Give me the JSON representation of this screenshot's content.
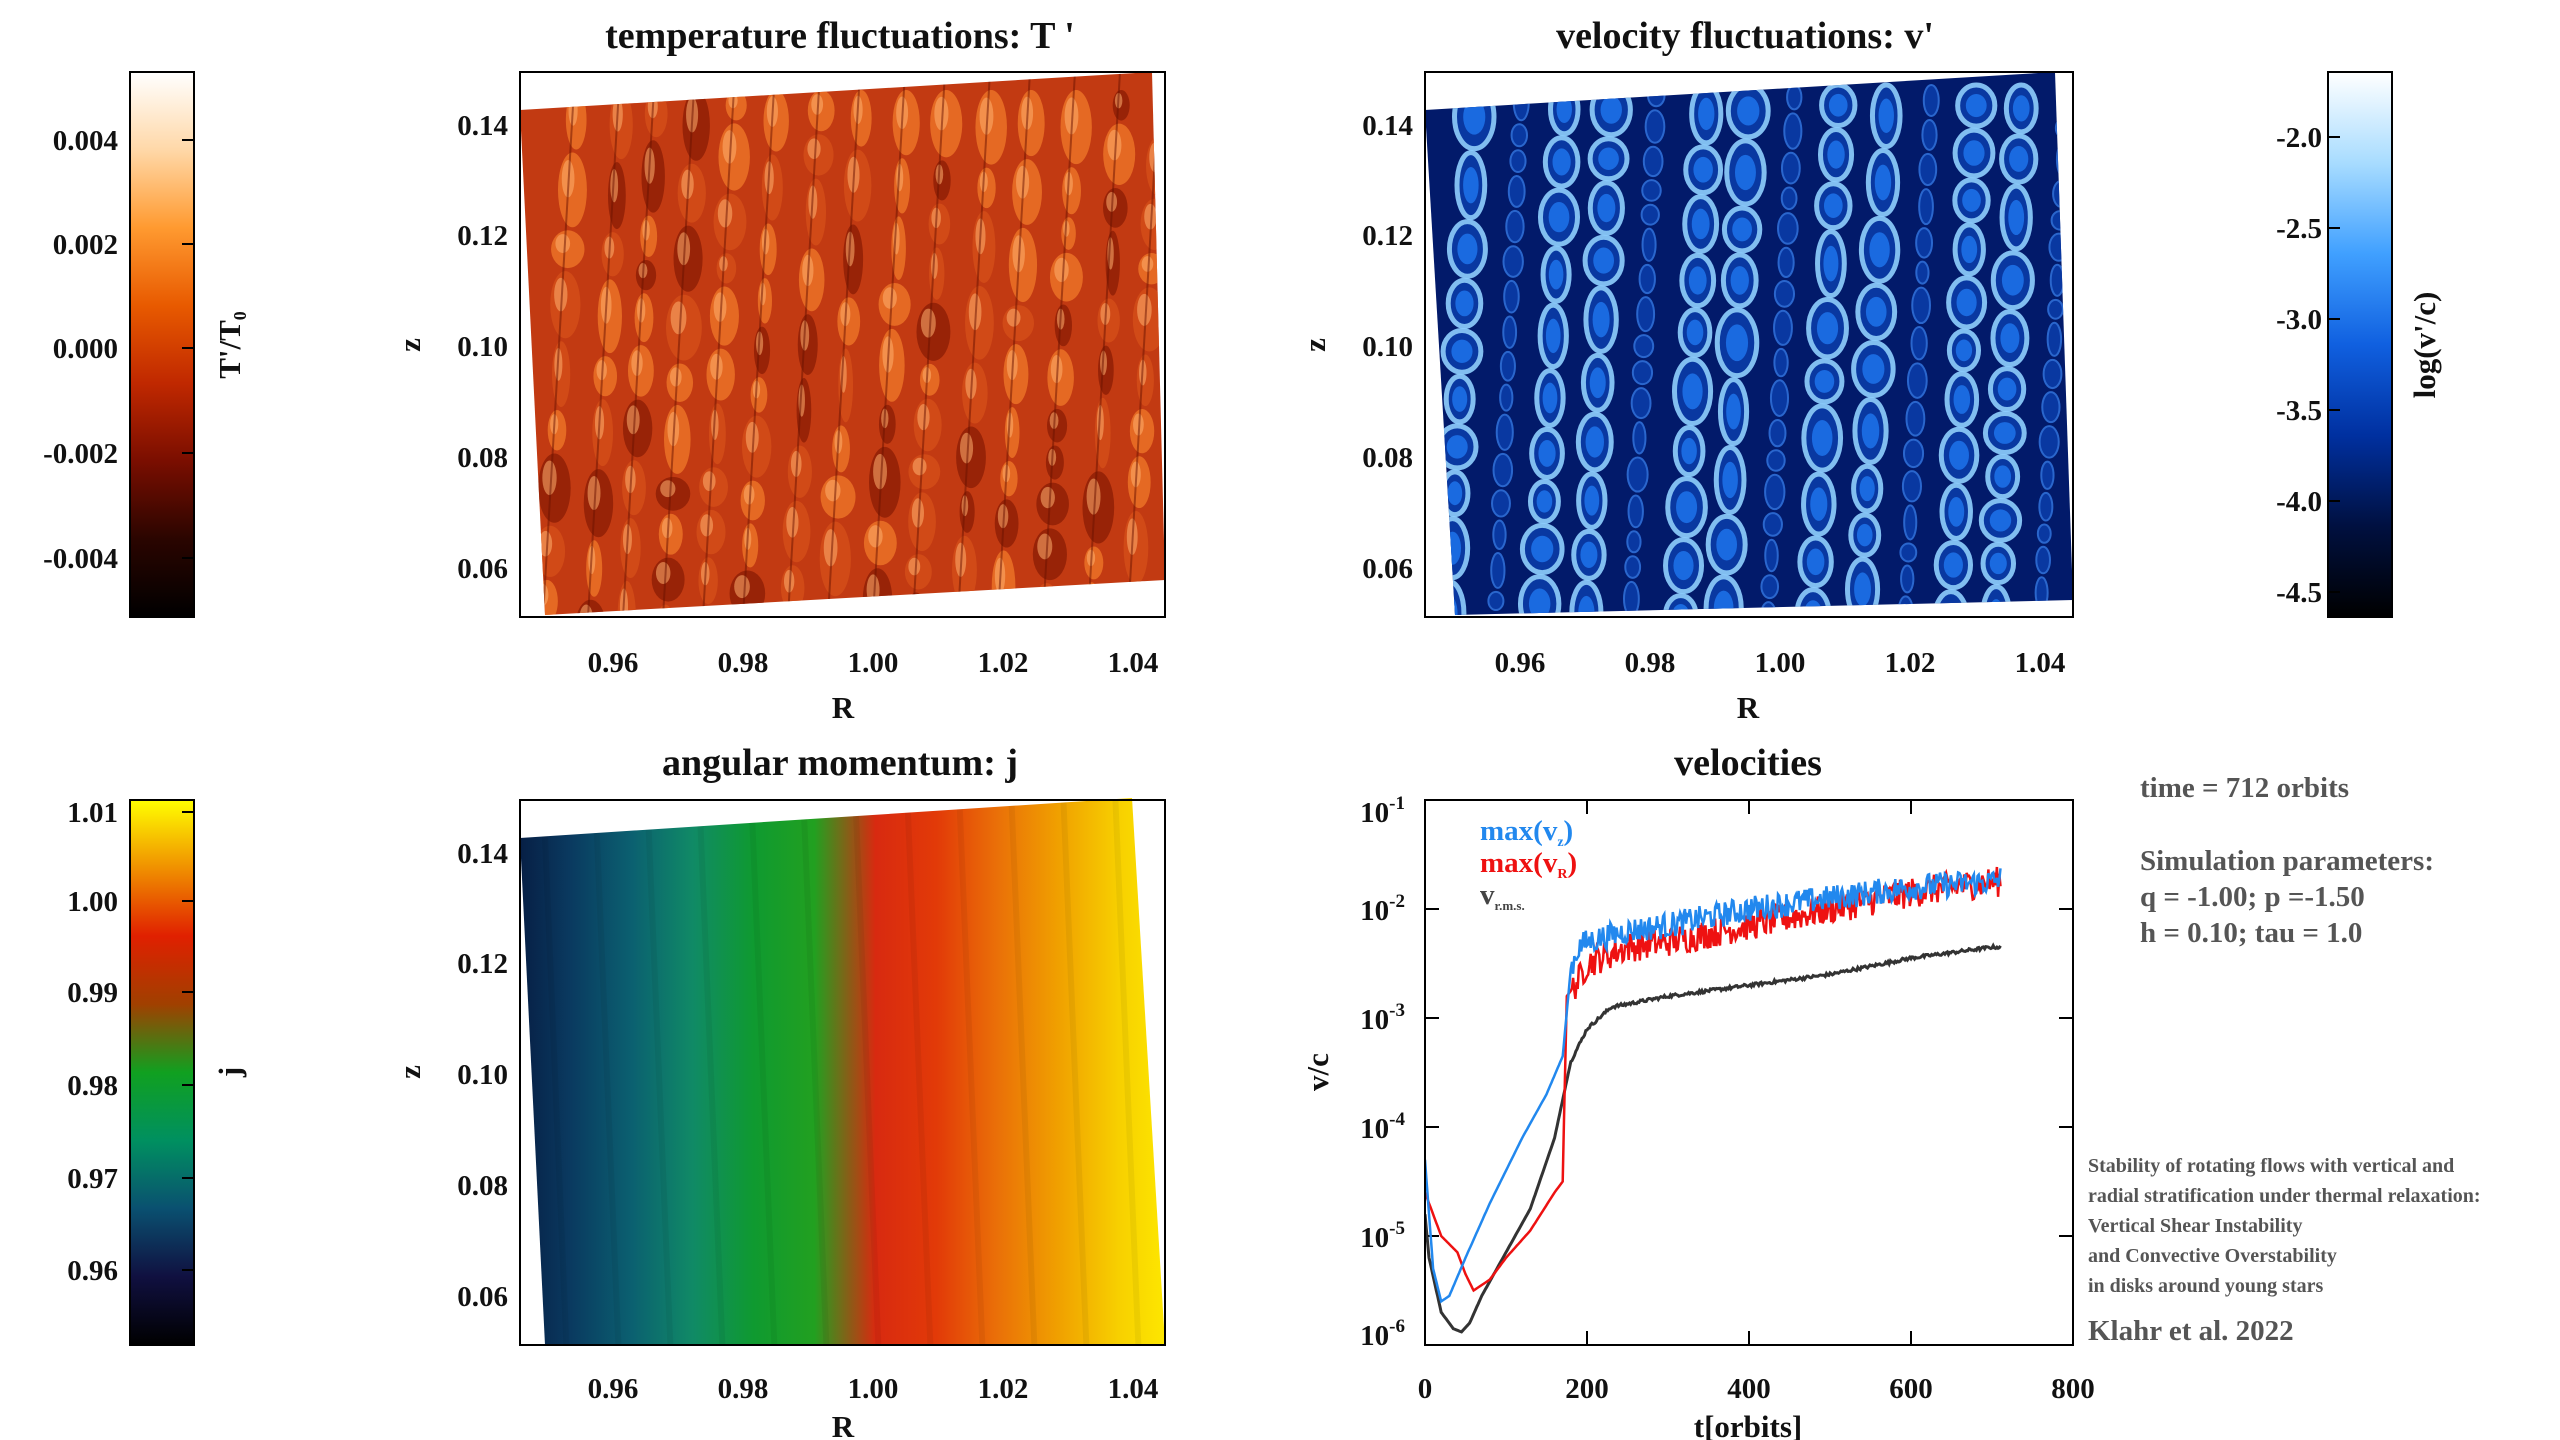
{
  "colors": {
    "temp_map": [
      "#000000",
      "#2a0500",
      "#7a0e00",
      "#c02800",
      "#e85a00",
      "#ff9a30",
      "#ffd8a8",
      "#ffffff"
    ],
    "vel_map": [
      "#000000",
      "#001040",
      "#0030a0",
      "#1060e0",
      "#40a0ff",
      "#a8dcff",
      "#ffffff"
    ],
    "j_map": [
      "#000000",
      "#101040",
      "#0a5070",
      "#009060",
      "#10a020",
      "#a04000",
      "#e02000",
      "#f09000",
      "#ffff00"
    ],
    "vz_line": "#2288ee",
    "vr_line": "#ee1111",
    "vrms_line": "#333333"
  },
  "temperature_panel": {
    "title": "temperature fluctuations: T '",
    "xlabel": "R",
    "ylabel": "z",
    "xticks": [
      "0.96",
      "0.98",
      "1.00",
      "1.02",
      "1.04"
    ],
    "yticks": [
      "0.14",
      "0.12",
      "0.10",
      "0.08",
      "0.06"
    ],
    "colorbar": {
      "label_main": "T'/T",
      "label_sub": "0",
      "ticks": [
        "0.004",
        "0.002",
        "0.000",
        "-0.002",
        "-0.004"
      ]
    }
  },
  "velocity_panel": {
    "title": "velocity fluctuations: v'",
    "xlabel": "R",
    "ylabel": "z",
    "xticks": [
      "0.96",
      "0.98",
      "1.00",
      "1.02",
      "1.04"
    ],
    "yticks": [
      "0.14",
      "0.12",
      "0.10",
      "0.08",
      "0.06"
    ],
    "colorbar": {
      "label": "log(v'/c)",
      "ticks": [
        "-2.0",
        "-2.5",
        "-3.0",
        "-3.5",
        "-4.0",
        "-4.5"
      ]
    }
  },
  "angular_panel": {
    "title": "angular momentum: j",
    "xlabel": "R",
    "ylabel": "z",
    "xticks": [
      "0.96",
      "0.98",
      "1.00",
      "1.02",
      "1.04"
    ],
    "yticks": [
      "0.14",
      "0.12",
      "0.10",
      "0.08",
      "0.06"
    ],
    "colorbar": {
      "label": "j",
      "ticks": [
        "1.01",
        "1.00",
        "0.99",
        "0.98",
        "0.97",
        "0.96"
      ]
    }
  },
  "info": {
    "time": "time = 712 orbits",
    "params_title": "Simulation parameters:",
    "params_line1": "q = -1.00; p =-1.50",
    "params_line2": "h = 0.10; tau = 1.0",
    "paper_lines": [
      "Stability of rotating flows with vertical and",
      "radial stratification under thermal relaxation:",
      "Vertical Shear Instability",
      "and Convective Overstability",
      "in disks around young stars"
    ],
    "citation": "Klahr et al. 2022"
  },
  "chart_data": {
    "type": "line",
    "title": "velocities",
    "xlabel": "t[orbits]",
    "ylabel": "v/c",
    "xlim": [
      0,
      800
    ],
    "ylim_log10": [
      -6,
      -1
    ],
    "xticks": [
      "0",
      "200",
      "400",
      "600",
      "800"
    ],
    "yticks": [
      {
        "base": "10",
        "exp": "-1"
      },
      {
        "base": "10",
        "exp": "-2"
      },
      {
        "base": "10",
        "exp": "-3"
      },
      {
        "base": "10",
        "exp": "-4"
      },
      {
        "base": "10",
        "exp": "-5"
      },
      {
        "base": "10",
        "exp": "-6"
      }
    ],
    "legend": [
      {
        "main": "max(v",
        "sub": "z",
        "close": ")",
        "color": "#2288ee"
      },
      {
        "main": "max(v",
        "sub": "R",
        "close": ")",
        "color": "#ee1111"
      },
      {
        "main": "v",
        "sub": "r.m.s.",
        "close": "",
        "color": "#333333"
      }
    ],
    "series": [
      {
        "name": "max(v_z)",
        "x": [
          0,
          5,
          10,
          20,
          30,
          50,
          80,
          120,
          150,
          170,
          180,
          190,
          200,
          250,
          300,
          400,
          500,
          600,
          700,
          712
        ],
        "log10_y": [
          -4.3,
          -4.8,
          -5.3,
          -5.6,
          -5.55,
          -5.2,
          -4.7,
          -4.1,
          -3.7,
          -3.35,
          -2.55,
          -2.35,
          -2.3,
          -2.2,
          -2.15,
          -2.0,
          -1.9,
          -1.8,
          -1.75,
          -1.72
        ]
      },
      {
        "name": "max(v_R)",
        "x": [
          0,
          5,
          20,
          40,
          50,
          60,
          80,
          100,
          130,
          160,
          170,
          175,
          180,
          190,
          200,
          250,
          300,
          400,
          500,
          600,
          700,
          712
        ],
        "log10_y": [
          -4.6,
          -4.7,
          -5.0,
          -5.15,
          -5.35,
          -5.5,
          -5.4,
          -5.2,
          -4.95,
          -4.6,
          -4.5,
          -2.8,
          -2.75,
          -2.65,
          -2.5,
          -2.35,
          -2.3,
          -2.15,
          -2.0,
          -1.85,
          -1.75,
          -1.75
        ]
      },
      {
        "name": "v_rms",
        "x": [
          0,
          5,
          20,
          35,
          45,
          55,
          70,
          100,
          130,
          160,
          180,
          200,
          230,
          300,
          400,
          500,
          600,
          700,
          712
        ],
        "log10_y": [
          -4.8,
          -5.2,
          -5.7,
          -5.85,
          -5.88,
          -5.8,
          -5.55,
          -5.15,
          -4.75,
          -4.1,
          -3.4,
          -3.1,
          -2.9,
          -2.8,
          -2.7,
          -2.6,
          -2.45,
          -2.35,
          -2.35
        ]
      }
    ]
  }
}
